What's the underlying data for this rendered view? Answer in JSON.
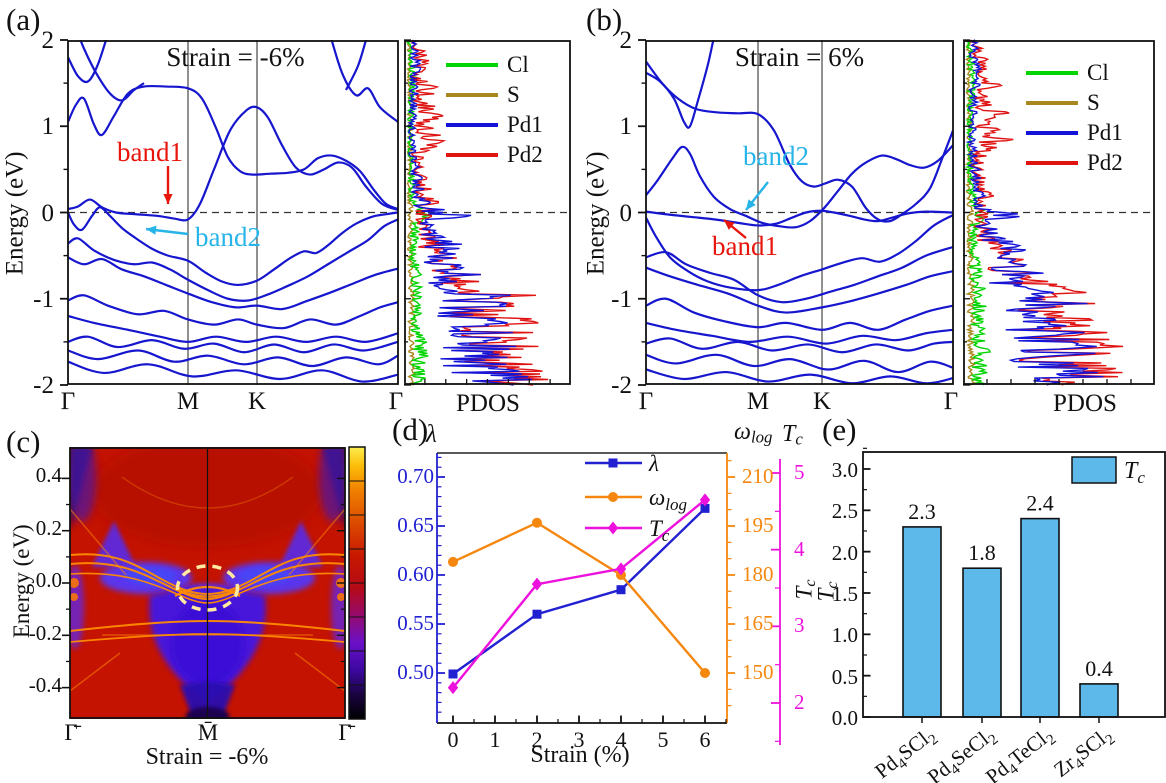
{
  "figure_labels": {
    "a": "(a)",
    "b": "(b)",
    "c": "(c)",
    "d": "(d)",
    "e": "(e)"
  },
  "panel_a": {
    "title": "Strain = -6%",
    "ylabel": "Energy (eV)",
    "yticks": [
      "2",
      "1",
      "0",
      "-1",
      "-2"
    ],
    "kpath": [
      "Γ",
      "M",
      "K",
      "Γ"
    ],
    "band1": "band1",
    "band2": "band2",
    "band1_color": "#e8150d",
    "band2_color": "#27b4e8",
    "pdos_label": "PDOS",
    "legend": [
      {
        "label": "Cl",
        "color": "#00d400"
      },
      {
        "label": "S",
        "color": "#a8871f"
      },
      {
        "label": "Pd1",
        "color": "#1414d8"
      },
      {
        "label": "Pd2",
        "color": "#e01313"
      }
    ]
  },
  "panel_b": {
    "title": "Strain = 6%",
    "ylabel": "Energy (eV)",
    "yticks": [
      "2",
      "1",
      "0",
      "-1",
      "-2"
    ],
    "kpath": [
      "Γ",
      "M",
      "K",
      "Γ"
    ],
    "band1": "band1",
    "band2": "band2",
    "band1_color": "#e8150d",
    "band2_color": "#27b4e8",
    "pdos_label": "PDOS",
    "legend": [
      {
        "label": "Cl",
        "color": "#00d400"
      },
      {
        "label": "S",
        "color": "#a8871f"
      },
      {
        "label": "Pd1",
        "color": "#1414d8"
      },
      {
        "label": "Pd2",
        "color": "#e01313"
      }
    ]
  },
  "panel_c": {
    "ylabel": "Energy (eV)",
    "yticks": [
      "0.4",
      "0.2",
      "0.0",
      "-0.2",
      "-0.4"
    ],
    "xticks": [
      "Γ̄",
      "M̄",
      "Γ̄"
    ],
    "xlabel": "Strain = -6%"
  },
  "panel_d": {
    "lambda_label": "λ",
    "omega_label": "ω_log",
    "tc_label": "T_c",
    "tc_axis_label": "T_c",
    "xlabel": "Strain (%)",
    "xticks": [
      "0",
      "1",
      "2",
      "3",
      "4",
      "5",
      "6"
    ],
    "lambda_ticks": [
      "0.70",
      "0.65",
      "0.60",
      "0.55",
      "0.50"
    ],
    "omega_ticks": [
      "210",
      "195",
      "180",
      "165",
      "150"
    ],
    "tc_ticks": [
      "5",
      "4",
      "3",
      "2"
    ]
  },
  "panel_e": {
    "ylabel": "T_c",
    "yticks": [
      "3.0",
      "2.5",
      "2.0",
      "1.5",
      "1.0",
      "0.5",
      "0.0"
    ],
    "legend_label": "T_c"
  },
  "chart_data": [
    {
      "panel": "a",
      "type": "line",
      "subtype": "band_structure",
      "title": "Strain = -6%",
      "ylabel": "Energy (eV)",
      "ylim": [
        -2,
        2
      ],
      "yticks": [
        2,
        1,
        0,
        -1,
        -2
      ],
      "kpath": [
        "Γ",
        "M",
        "K",
        "Γ"
      ],
      "fermi_level_eV": 0,
      "band_color": "#1616cf",
      "annotations": [
        {
          "text": "band1",
          "color": "#e8150d",
          "points_to": "flat band at E≈0 between Γ and M"
        },
        {
          "text": "band2",
          "color": "#27b4e8",
          "points_to": "band dispersing below E=0 toward M"
        }
      ],
      "pdos": {
        "xlabel": "PDOS",
        "series": [
          "Cl",
          "S",
          "Pd1",
          "Pd2"
        ],
        "colors": [
          "#00d400",
          "#a8871f",
          "#1414d8",
          "#e01313"
        ]
      }
    },
    {
      "panel": "b",
      "type": "line",
      "subtype": "band_structure",
      "title": "Strain = 6%",
      "ylabel": "Energy (eV)",
      "ylim": [
        -2,
        2
      ],
      "yticks": [
        2,
        1,
        0,
        -1,
        -2
      ],
      "kpath": [
        "Γ",
        "M",
        "K",
        "Γ"
      ],
      "fermi_level_eV": 0,
      "band_color": "#1616cf",
      "annotations": [
        {
          "text": "band2",
          "color": "#27b4e8",
          "points_to": "band crossing E=0 between Γ and M"
        },
        {
          "text": "band1",
          "color": "#e8150d",
          "points_to": "flat band just below E=0 near M"
        }
      ],
      "pdos": {
        "xlabel": "PDOS",
        "series": [
          "Cl",
          "S",
          "Pd1",
          "Pd2"
        ],
        "colors": [
          "#00d400",
          "#a8871f",
          "#1414d8",
          "#e01313"
        ]
      }
    },
    {
      "panel": "c",
      "type": "heatmap",
      "xlabel": "Strain = -6%",
      "ylabel": "Energy (eV)",
      "xticks": [
        "Γ̄",
        "M̄",
        "Γ̄"
      ],
      "yticks": [
        0.4,
        0.2,
        0.0,
        -0.2,
        -0.4
      ],
      "ylim": [
        -0.52,
        0.52
      ],
      "colormap": "black→purple→red→orange→yellow",
      "highlight": "dashed pale-yellow ellipse around flat surface bands near E=0 at M̄"
    },
    {
      "panel": "d",
      "type": "line",
      "x": [
        0,
        2,
        4,
        6
      ],
      "xlabel": "Strain (%)",
      "xlim": [
        -0.5,
        6.5
      ],
      "xticks": [
        0,
        1,
        2,
        3,
        4,
        5,
        6
      ],
      "series": [
        {
          "name": "λ",
          "axis": "left",
          "color": "#2121d2",
          "marker": "square",
          "values": [
            0.499,
            0.56,
            0.585,
            0.668
          ]
        },
        {
          "name": "ω_log",
          "axis": "right_inner",
          "color": "#f5870f",
          "marker": "circle",
          "values": [
            184,
            196,
            180,
            150
          ]
        },
        {
          "name": "T_c",
          "axis": "right_outer",
          "color": "#ee11dd",
          "marker": "diamond",
          "values": [
            2.2,
            3.55,
            3.75,
            4.65
          ]
        }
      ],
      "axes": {
        "left": {
          "label": "λ",
          "ticks": [
            0.7,
            0.65,
            0.6,
            0.55,
            0.5
          ],
          "color": "#2121d2"
        },
        "right_inner": {
          "label": "ω_log",
          "ticks": [
            210,
            195,
            180,
            165,
            150
          ],
          "color": "#f5870f"
        },
        "right_outer": {
          "label": "T_c",
          "ticks": [
            5,
            4,
            3,
            2
          ],
          "color": "#ee11dd"
        }
      },
      "legend": [
        "λ",
        "ω_log",
        "T_c"
      ],
      "legend_position": "top-center"
    },
    {
      "panel": "e",
      "type": "bar",
      "categories": [
        "Pd4SCl2",
        "Pd4SeCl2",
        "Pd4TeCl2",
        "Zr4SCl2"
      ],
      "values": [
        2.3,
        1.8,
        2.4,
        0.4
      ],
      "value_labels": [
        "2.3",
        "1.8",
        "2.4",
        "0.4"
      ],
      "ylabel": "T_c",
      "ylim": [
        0,
        3.3
      ],
      "yticks": [
        3.0,
        2.5,
        2.0,
        1.5,
        1.0,
        0.5,
        0.0
      ],
      "bar_color": "#5cb9ea",
      "legend": [
        "T_c"
      ]
    }
  ]
}
